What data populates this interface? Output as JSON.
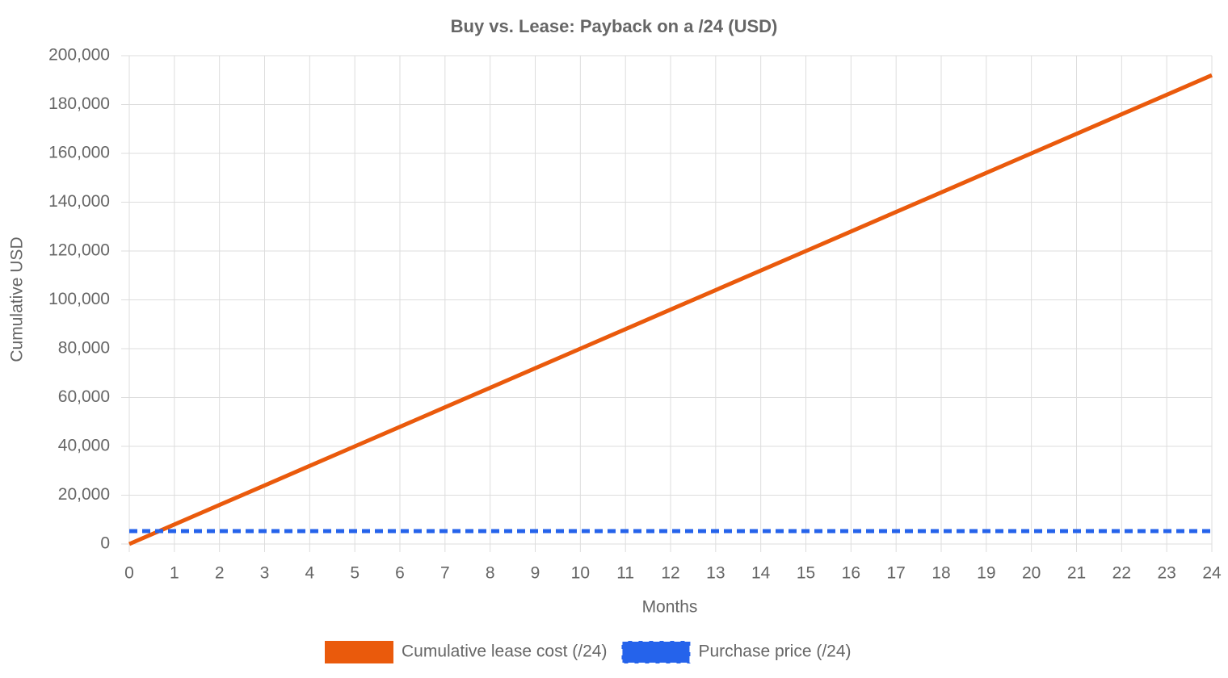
{
  "chart_data": {
    "type": "line",
    "title": "Buy vs. Lease: Payback on a /24 (USD)",
    "x_label": "Months",
    "y_label": "Cumulative USD",
    "x": [
      0,
      1,
      2,
      3,
      4,
      5,
      6,
      7,
      8,
      9,
      10,
      11,
      12,
      13,
      14,
      15,
      16,
      17,
      18,
      19,
      20,
      21,
      22,
      23,
      24
    ],
    "series": [
      {
        "name": "Cumulative lease cost (/24)",
        "color": "#ea5a0c",
        "line_style": "solid",
        "values": [
          0,
          8000,
          16000,
          24000,
          32000,
          40000,
          48000,
          56000,
          64000,
          72000,
          80000,
          88000,
          96000,
          104000,
          112000,
          120000,
          128000,
          136000,
          144000,
          152000,
          160000,
          168000,
          176000,
          184000,
          192000
        ]
      },
      {
        "name": "Purchase price (/24)",
        "color": "#2563eb",
        "line_style": "dashed",
        "values": [
          5300,
          5300,
          5300,
          5300,
          5300,
          5300,
          5300,
          5300,
          5300,
          5300,
          5300,
          5300,
          5300,
          5300,
          5300,
          5300,
          5300,
          5300,
          5300,
          5300,
          5300,
          5300,
          5300,
          5300,
          5300
        ]
      }
    ],
    "xlim": [
      0,
      24
    ],
    "xticks": [
      0,
      1,
      2,
      3,
      4,
      5,
      6,
      7,
      8,
      9,
      10,
      11,
      12,
      13,
      14,
      15,
      16,
      17,
      18,
      19,
      20,
      21,
      22,
      23,
      24
    ],
    "ylim": [
      0,
      200000
    ],
    "yticks": [
      0,
      {
        "value": 20000,
        "label": "20,000"
      },
      {
        "value": 40000,
        "label": "40,000"
      },
      {
        "value": 60000,
        "label": "60,000"
      },
      {
        "value": 80000,
        "label": "80,000"
      },
      {
        "value": 100000,
        "label": "100,000"
      },
      {
        "value": 120000,
        "label": "120,000"
      },
      {
        "value": 140000,
        "label": "140,000"
      },
      {
        "value": 160000,
        "label": "160,000"
      },
      {
        "value": 180000,
        "label": "180,000"
      },
      {
        "value": 200000,
        "label": "200,000"
      }
    ],
    "grid": true,
    "legend": "bottom"
  }
}
